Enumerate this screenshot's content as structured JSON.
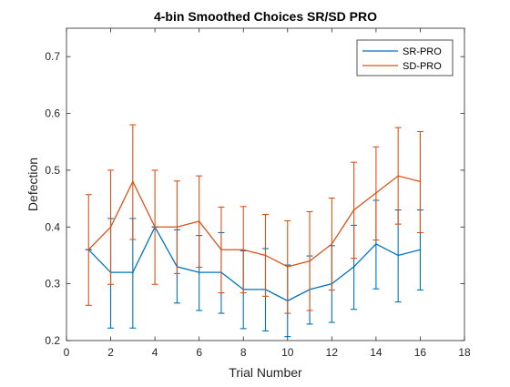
{
  "chart_data": {
    "type": "line",
    "title": "4-bin Smoothed Choices SR/SD PRO",
    "xlabel": "Trial Number",
    "ylabel": "Defection",
    "xlim": [
      0,
      18
    ],
    "ylim": [
      0.2,
      0.75
    ],
    "xticks": [
      0,
      2,
      4,
      6,
      8,
      10,
      12,
      14,
      16,
      18
    ],
    "xtick_labels": [
      "0",
      "2",
      "4",
      "6",
      "8",
      "10",
      "12",
      "14",
      "16",
      "18"
    ],
    "yticks": [
      0.2,
      0.3,
      0.4,
      0.5,
      0.6,
      0.7
    ],
    "ytick_labels": [
      "0.2",
      "0.3",
      "0.4",
      "0.5",
      "0.6",
      "0.7"
    ],
    "grid": false,
    "legend_location": "top-right",
    "x": [
      1,
      2,
      3,
      4,
      5,
      6,
      7,
      8,
      9,
      10,
      11,
      12,
      13,
      14,
      15,
      16
    ],
    "series": [
      {
        "name": "SR-PRO",
        "color": "#0072BD",
        "values": [
          0.36,
          0.32,
          0.32,
          0.4,
          0.33,
          0.32,
          0.32,
          0.29,
          0.29,
          0.27,
          0.29,
          0.3,
          0.33,
          0.37,
          0.35,
          0.36
        ],
        "error_lower": [
          0.36,
          0.222,
          0.222,
          0.4,
          0.266,
          0.253,
          0.248,
          0.221,
          0.217,
          0.207,
          0.229,
          0.232,
          0.255,
          0.291,
          0.268,
          0.289
        ],
        "error_upper": [
          0.36,
          0.415,
          0.415,
          0.4,
          0.395,
          0.385,
          0.39,
          0.358,
          0.362,
          0.333,
          0.349,
          0.367,
          0.403,
          0.447,
          0.43,
          0.43
        ]
      },
      {
        "name": "SD-PRO",
        "color": "#D95319",
        "values": [
          0.36,
          0.4,
          0.48,
          0.4,
          0.4,
          0.41,
          0.36,
          0.36,
          0.35,
          0.33,
          0.34,
          0.37,
          0.43,
          0.46,
          0.49,
          0.48
        ],
        "error_lower": [
          0.262,
          0.299,
          0.378,
          0.299,
          0.318,
          0.329,
          0.284,
          0.284,
          0.278,
          0.248,
          0.253,
          0.289,
          0.345,
          0.377,
          0.405,
          0.39
        ],
        "error_upper": [
          0.457,
          0.5,
          0.58,
          0.5,
          0.481,
          0.49,
          0.435,
          0.436,
          0.422,
          0.411,
          0.427,
          0.451,
          0.514,
          0.541,
          0.575,
          0.568
        ]
      }
    ]
  }
}
